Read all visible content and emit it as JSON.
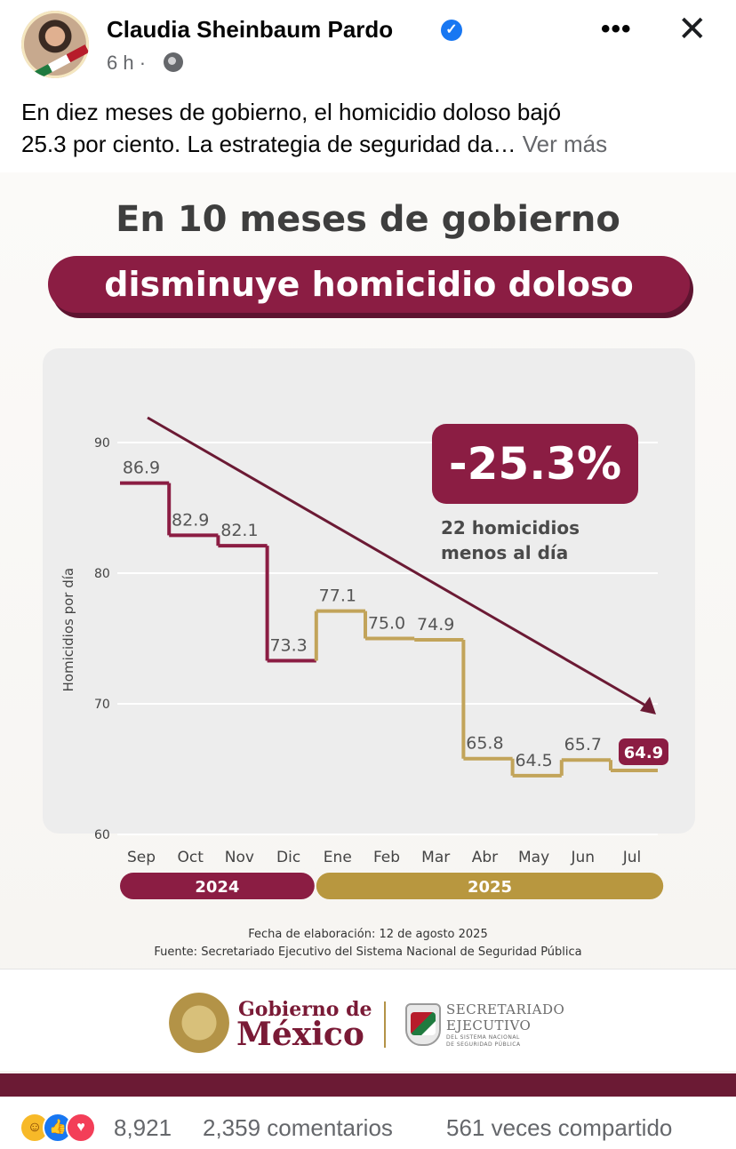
{
  "post": {
    "author": "Claudia Sheinbaum Pardo",
    "time": "6 h",
    "separator": "·",
    "more_menu": "•••",
    "close": "✕",
    "caption_line1": "En diez meses de gobierno, el homicidio doloso bajó",
    "caption_line2": "25.3 por ciento. La estrategia de seguridad da…",
    "see_more": "Ver más"
  },
  "graphic": {
    "headline": "En 10 meses de gobierno",
    "banner": "disminuye homicidio doloso",
    "badge": "-25.3%",
    "badge_sub_line1": "22 homicidios",
    "badge_sub_line2": "menos al día",
    "date_note": "Fecha de elaboración: 12 de agosto 2025",
    "source_note": "Fuente: Secretariado Ejecutivo del Sistema Nacional de Seguridad Pública",
    "footer_gob_line1": "Gobierno de",
    "footer_gob_line2": "México",
    "footer_se_line1": "SECRETARIADO",
    "footer_se_line2": "EJECUTIVO",
    "footer_se_line3": "DEL SISTEMA NACIONAL",
    "footer_se_line4": "DE SEGURIDAD PÚBLICA"
  },
  "chart_data": {
    "type": "line",
    "ylabel": "Homicidios por día",
    "ylim": [
      60,
      90
    ],
    "yticks": [
      60,
      70,
      80,
      90
    ],
    "categories": [
      "Sep",
      "Oct",
      "Nov",
      "Dic",
      "Ene",
      "Feb",
      "Mar",
      "Abr",
      "May",
      "Jun",
      "Jul"
    ],
    "values": [
      86.9,
      82.9,
      82.1,
      73.3,
      77.1,
      75.0,
      74.9,
      65.8,
      64.5,
      65.7,
      64.9
    ],
    "value_labels": [
      "86.9",
      "82.9",
      "82.1",
      "73.3",
      "77.1",
      "75.0",
      "74.9",
      "65.8",
      "64.5",
      "65.7",
      "64.9"
    ],
    "year_groups": [
      {
        "label": "2024",
        "categories": [
          "Sep",
          "Oct",
          "Nov",
          "Dic"
        ],
        "color": "#8b1d43"
      },
      {
        "label": "2025",
        "categories": [
          "Ene",
          "Feb",
          "Mar",
          "Abr",
          "May",
          "Jun",
          "Jul"
        ],
        "color": "#b8973f"
      }
    ],
    "trend_arrow": true,
    "grid": true,
    "colors": {
      "y2024": "#8b1d43",
      "y2025": "#c2a45a",
      "trend": "#6b1a34"
    }
  },
  "reactions": {
    "count": "8,921",
    "comments": "2,359 comentarios",
    "shares": "561 veces compartido",
    "icons": [
      "haha-icon",
      "like-icon",
      "love-icon"
    ]
  }
}
